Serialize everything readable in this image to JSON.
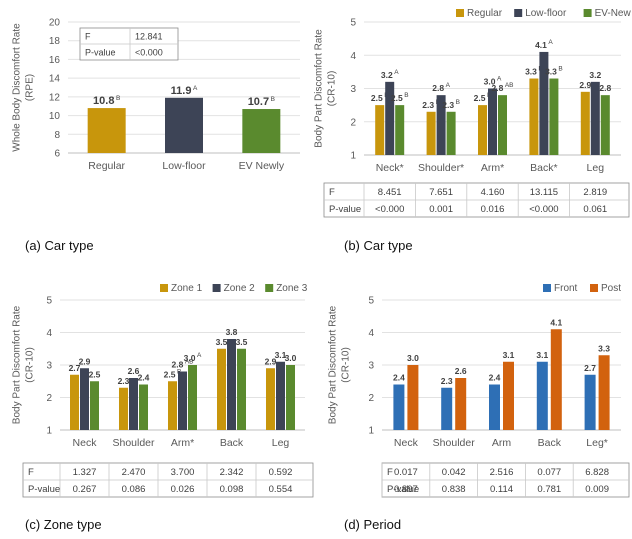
{
  "chart_data": [
    {
      "id": "a",
      "type": "bar",
      "ylabel": "Whole Body Discomfort Rate\n(RPE)",
      "ylim": [
        6,
        20
      ],
      "yticks": [
        6,
        8,
        10,
        12,
        14,
        16,
        18,
        20
      ],
      "categories": [
        "Regular",
        "Low-floor",
        "EV Newly"
      ],
      "series": [
        {
          "values": [
            10.8,
            11.9,
            10.7
          ],
          "labels": [
            "10.8",
            "11.9",
            "10.7"
          ],
          "sups": [
            "B",
            "A",
            "B"
          ],
          "colors": [
            "#c8960c",
            "#3d4456",
            "#5a8a2e"
          ]
        }
      ],
      "inset_table": [
        [
          "F",
          "12.841"
        ],
        [
          "P-value",
          "<0.000"
        ]
      ],
      "caption": "(a) Car type"
    },
    {
      "id": "b",
      "type": "bar",
      "ylabel": "Body Part Discomfort Rate\n(CR-10)",
      "ylim": [
        1,
        5
      ],
      "yticks": [
        1,
        2,
        3,
        4,
        5
      ],
      "categories": [
        "Neck*",
        "Shoulder*",
        "Arm*",
        "Back*",
        "Leg"
      ],
      "series": [
        {
          "name": "Regular",
          "color": "#c8960c",
          "values": [
            2.5,
            2.3,
            2.5,
            3.3,
            2.9
          ],
          "sups": [
            "B",
            "B",
            "B",
            "B",
            ""
          ]
        },
        {
          "name": "Low-floor",
          "color": "#3d4456",
          "values": [
            3.2,
            2.8,
            3.0,
            4.1,
            3.2
          ],
          "sups": [
            "A",
            "A",
            "A",
            "A",
            ""
          ]
        },
        {
          "name": "EV-New",
          "color": "#5a8a2e",
          "values": [
            2.5,
            2.3,
            2.8,
            3.3,
            2.8
          ],
          "sups": [
            "B",
            "B",
            "AB",
            "B",
            ""
          ]
        }
      ],
      "legend": "top",
      "stats": {
        "F": [
          "8.451",
          "7.651",
          "4.160",
          "13.115",
          "2.819"
        ],
        "P-value": [
          "<0.000",
          "0.001",
          "0.016",
          "<0.000",
          "0.061"
        ]
      },
      "caption": "(b) Car type"
    },
    {
      "id": "c",
      "type": "bar",
      "ylabel": "Body Part Discomfort Rate\n(CR-10)",
      "ylim": [
        1,
        5
      ],
      "yticks": [
        1,
        2,
        3,
        4,
        5
      ],
      "categories": [
        "Neck",
        "Shoulder",
        "Arm*",
        "Back",
        "Leg"
      ],
      "series": [
        {
          "name": "Zone 1",
          "color": "#c8960c",
          "values": [
            2.7,
            2.3,
            2.5,
            3.5,
            2.9
          ],
          "sups": [
            "",
            "",
            "B",
            "",
            ""
          ]
        },
        {
          "name": "Zone 2",
          "color": "#3d4456",
          "values": [
            2.9,
            2.6,
            2.8,
            3.8,
            3.1
          ],
          "sups": [
            "",
            "",
            "AB",
            "",
            ""
          ]
        },
        {
          "name": "Zone 3",
          "color": "#5a8a2e",
          "values": [
            2.5,
            2.4,
            3.0,
            3.5,
            3.0
          ],
          "sups": [
            "",
            "",
            "A",
            "",
            ""
          ]
        }
      ],
      "legend": "top",
      "stats": {
        "F": [
          "1.327",
          "2.470",
          "3.700",
          "2.342",
          "0.592"
        ],
        "P-value": [
          "0.267",
          "0.086",
          "0.026",
          "0.098",
          "0.554"
        ]
      },
      "caption": "(c) Zone type"
    },
    {
      "id": "d",
      "type": "bar",
      "ylabel": "Body Part Discomfort Rate\n(CR-10)",
      "ylim": [
        1,
        5
      ],
      "yticks": [
        1,
        2,
        3,
        4,
        5
      ],
      "categories": [
        "Neck",
        "Shoulder",
        "Arm",
        "Back",
        "Leg*"
      ],
      "series": [
        {
          "name": "Front",
          "color": "#2e6fb5",
          "values": [
            2.4,
            2.3,
            2.4,
            3.1,
            2.7
          ],
          "sups": [
            "",
            "",
            "",
            "",
            ""
          ]
        },
        {
          "name": "Post",
          "color": "#d2620e",
          "values": [
            3.0,
            2.6,
            3.1,
            4.1,
            3.3
          ],
          "sups": [
            "",
            "",
            "",
            "",
            ""
          ]
        }
      ],
      "legend": "top",
      "stats": {
        "F": [
          "0.017",
          "0.042",
          "2.516",
          "0.077",
          "6.828"
        ],
        "P-value": [
          "0.897",
          "0.838",
          "0.114",
          "0.781",
          "0.009"
        ]
      },
      "caption": "(d) Period"
    }
  ]
}
